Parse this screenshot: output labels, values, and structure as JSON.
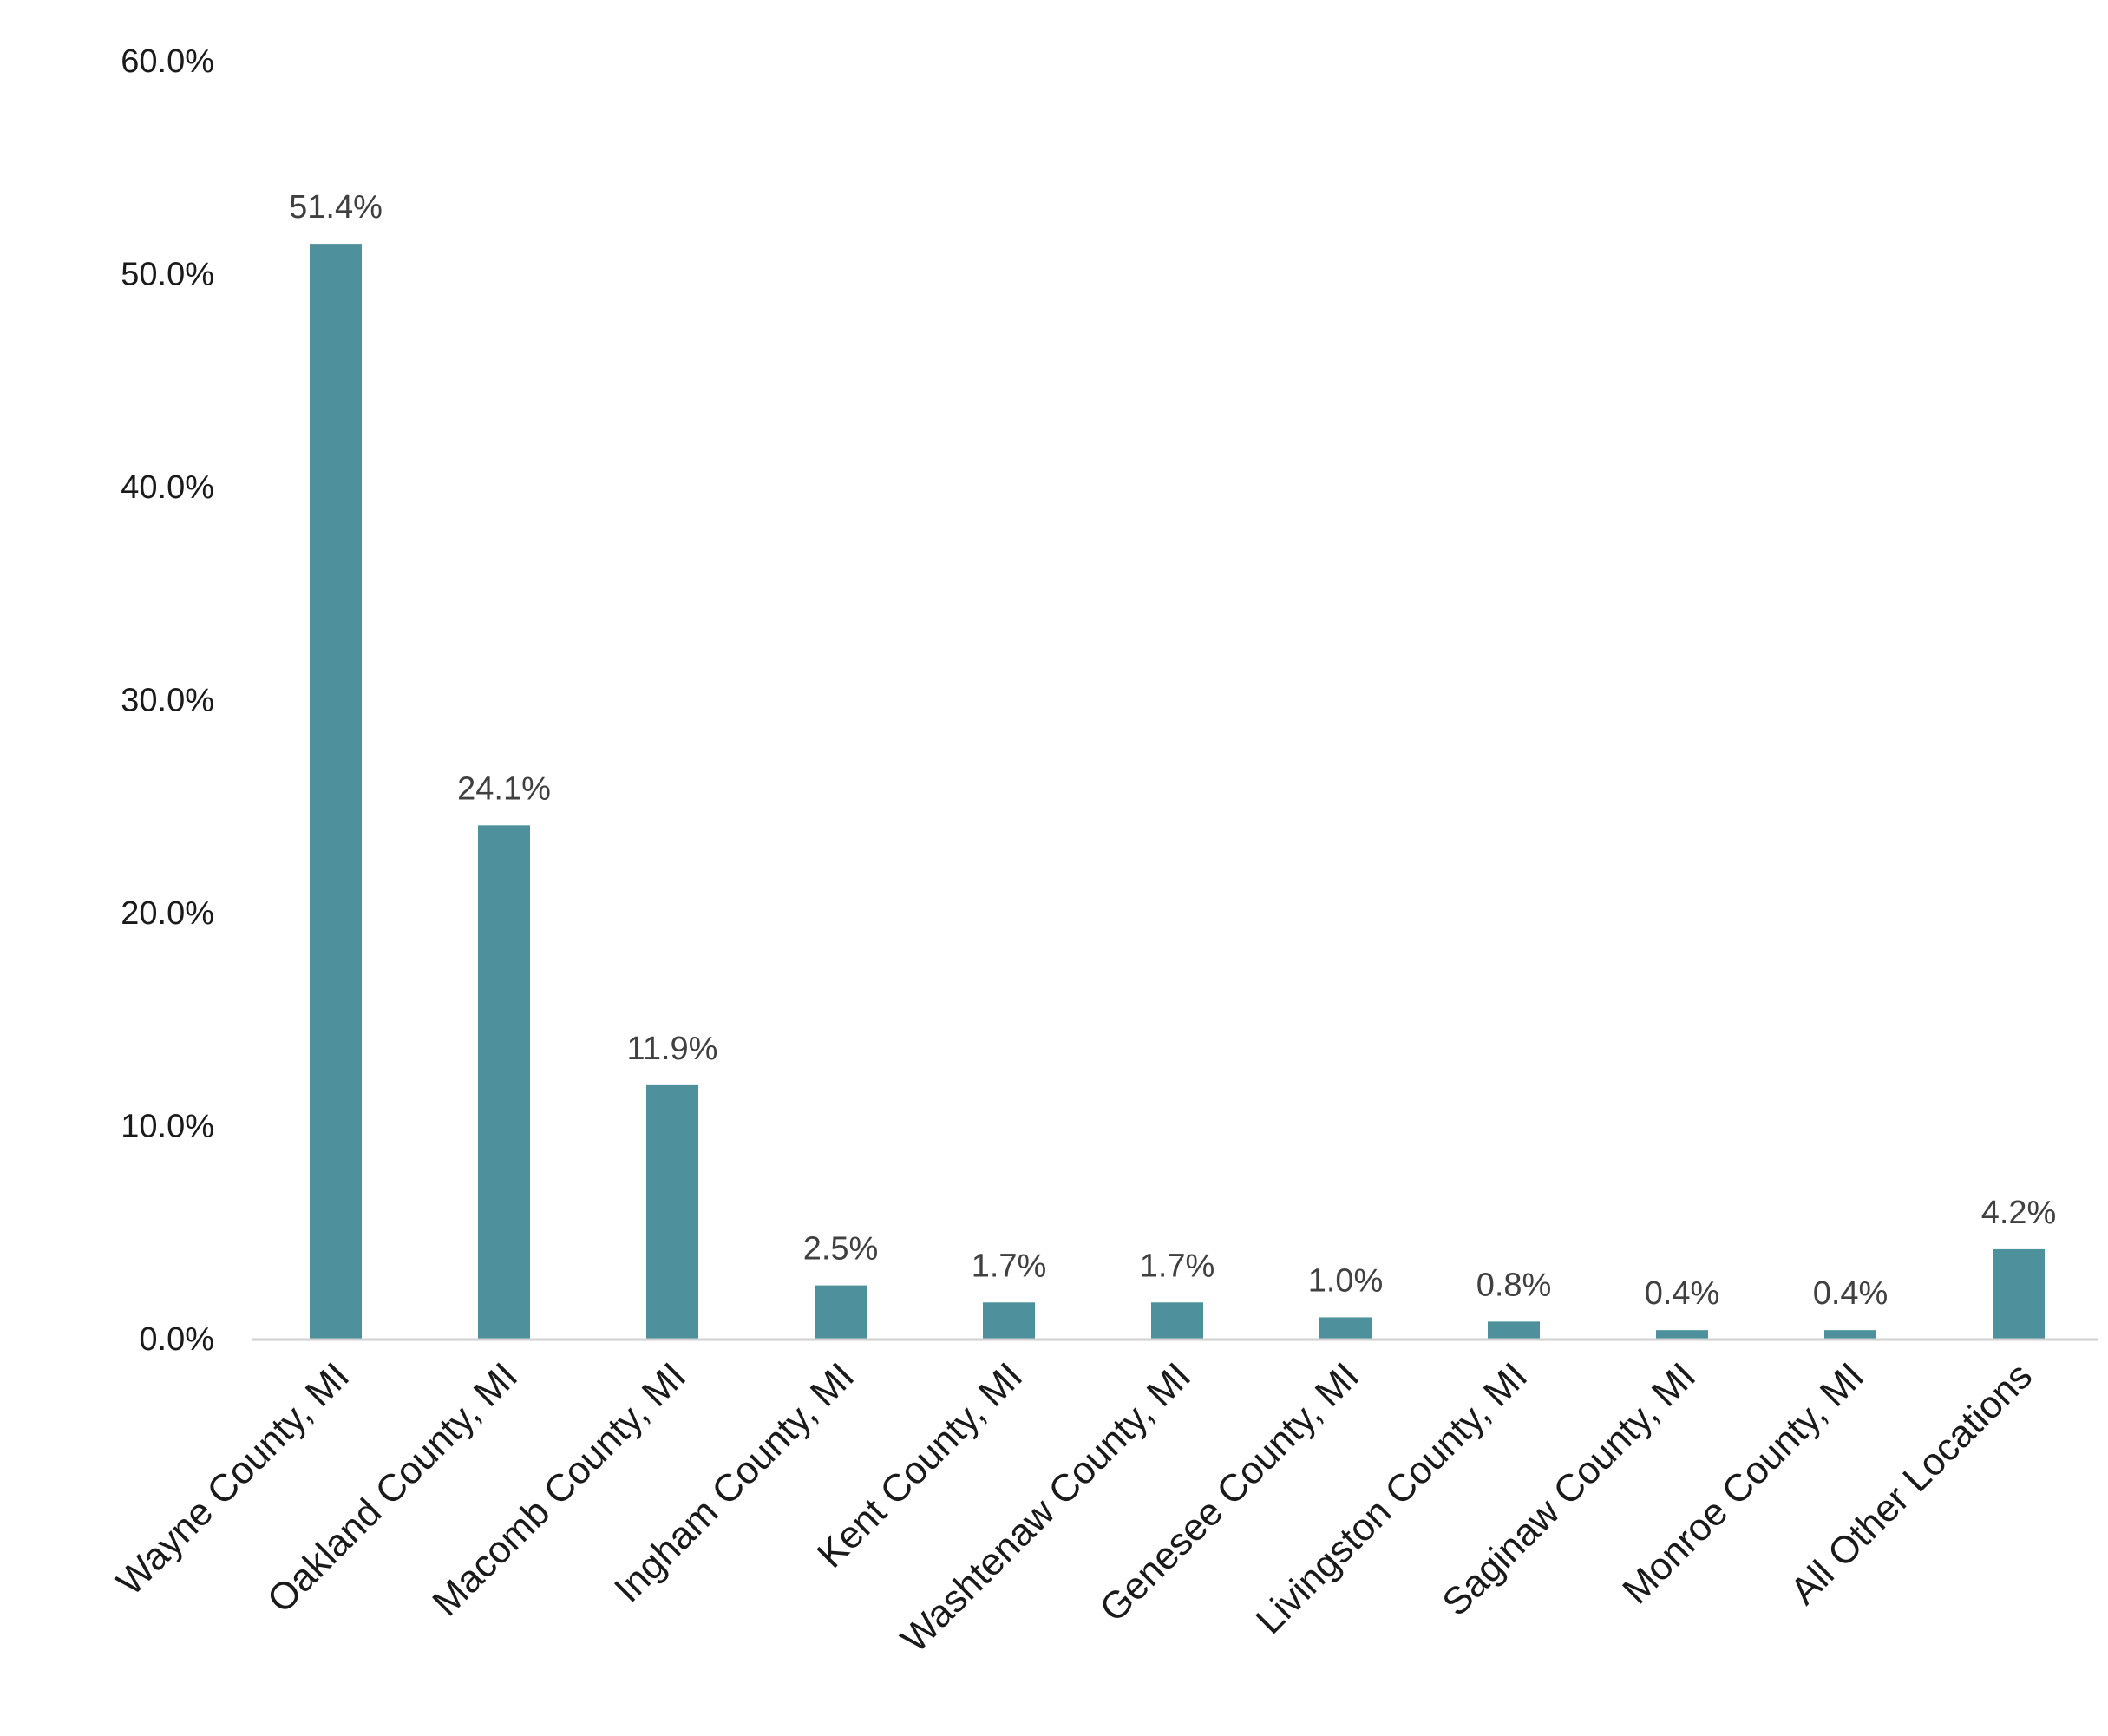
{
  "chart_data": {
    "type": "bar",
    "categories": [
      "Wayne County, MI",
      "Oakland County, MI",
      "Macomb County, MI",
      "Ingham County, MI",
      "Kent County, MI",
      "Washtenaw County, MI",
      "Genesee County, MI",
      "Livingston County, MI",
      "Saginaw County, MI",
      "Monroe County, MI",
      "All Other Locations"
    ],
    "values": [
      51.4,
      24.1,
      11.9,
      2.5,
      1.7,
      1.7,
      1.0,
      0.8,
      0.4,
      0.4,
      4.2
    ],
    "data_labels": [
      "51.4%",
      "24.1%",
      "11.9%",
      "2.5%",
      "1.7%",
      "1.7%",
      "1.0%",
      "0.8%",
      "0.4%",
      "0.4%",
      "4.2%"
    ],
    "y_ticks": [
      "0.0%",
      "10.0%",
      "20.0%",
      "30.0%",
      "40.0%",
      "50.0%",
      "60.0%"
    ],
    "y_tick_values": [
      0,
      10,
      20,
      30,
      40,
      50,
      60
    ],
    "ylim": [
      0,
      60
    ],
    "grid": false,
    "legend": "none",
    "bar_color": "#4e909b",
    "axis_color": "#d0d0d0"
  }
}
